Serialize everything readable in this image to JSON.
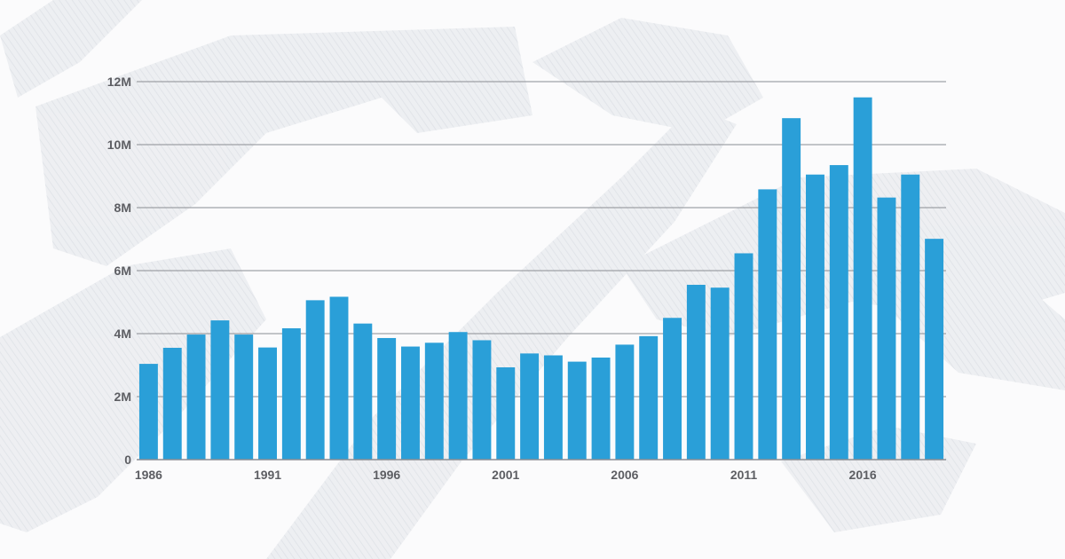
{
  "chart_data": {
    "type": "bar",
    "title": "",
    "xlabel": "",
    "ylabel": "",
    "categories": [
      "1986",
      "1987",
      "1988",
      "1989",
      "1990",
      "1991",
      "1992",
      "1993",
      "1994",
      "1995",
      "1996",
      "1997",
      "1998",
      "1999",
      "2000",
      "2001",
      "2002",
      "2003",
      "2004",
      "2005",
      "2006",
      "2007",
      "2008",
      "2009",
      "2010",
      "2011",
      "2012",
      "2013",
      "2014",
      "2015",
      "2016",
      "2017",
      "2018",
      "2019"
    ],
    "values": [
      3.04,
      3.55,
      3.97,
      4.42,
      3.97,
      3.56,
      4.17,
      5.06,
      5.17,
      4.32,
      3.86,
      3.59,
      3.71,
      4.05,
      3.79,
      2.93,
      3.37,
      3.31,
      3.11,
      3.24,
      3.65,
      3.92,
      4.5,
      5.55,
      5.46,
      6.55,
      8.58,
      10.84,
      9.05,
      9.35,
      11.5,
      8.32,
      9.05,
      7.01
    ],
    "value_unit": "millions",
    "ylim": [
      0,
      12
    ],
    "yticks": [
      0,
      2,
      4,
      6,
      8,
      10,
      12
    ],
    "ytick_labels": [
      "0",
      "2M",
      "4M",
      "6M",
      "8M",
      "10M",
      "12M"
    ],
    "xtick_labels": [
      "1986",
      "1991",
      "1996",
      "2001",
      "2006",
      "2011",
      "2016"
    ],
    "grid": true,
    "legend": "none",
    "colors": {
      "bar": "#2a9fd8",
      "grid": "#8a8d93",
      "tick_text": "#5d5e63",
      "background": "#fbfbfc",
      "background_art": "#e6e8ec"
    }
  }
}
